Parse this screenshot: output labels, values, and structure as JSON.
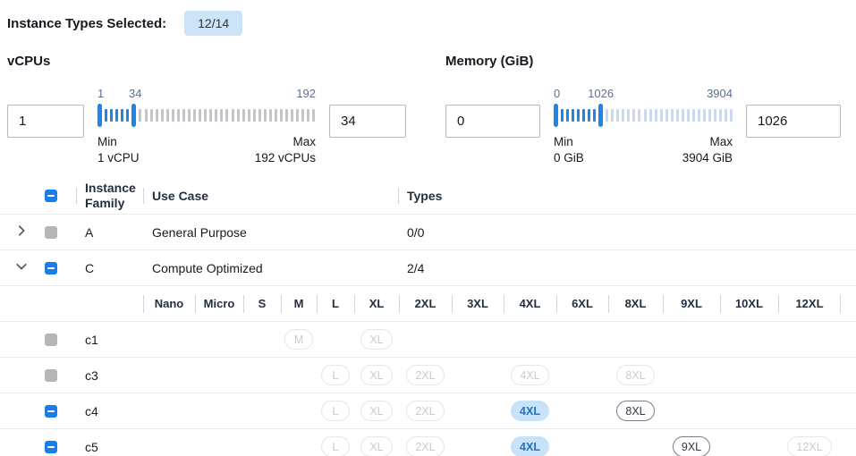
{
  "header": {
    "label": "Instance Types Selected:",
    "badge": "12/14"
  },
  "colors": {
    "accent_blue": "#1a7ee6",
    "slider_active": "#1e87e5",
    "slider_inactive_vcpu": "#c2c5c9",
    "slider_inactive_memory": "#ccd9ec",
    "count_badge_bg": "#cde3f7",
    "selected_pill_bg": "#c7e2f9",
    "selected_pill_text": "#1f73c7",
    "disabled_checkbox": "#b4b6b8"
  },
  "filters": [
    {
      "title": "vCPUs",
      "min_input": "1",
      "max_input": "34",
      "slider": {
        "labels": [
          "1",
          "34",
          "192"
        ],
        "mid_label_pct": 17.3,
        "selected_ticks": 5,
        "trailing_ticks": 33
      },
      "min_label": "Min",
      "min_value": "1 vCPU",
      "max_label": "Max",
      "max_value": "192 vCPUs"
    },
    {
      "title": "Memory (GiB)",
      "min_input": "0",
      "max_input": "1026",
      "slider": {
        "labels": [
          "0",
          "1026",
          "3904"
        ],
        "mid_label_pct": 26.3,
        "selected_ticks": 7,
        "trailing_ticks": 24
      },
      "min_label": "Min",
      "min_value": "0 GiB",
      "max_label": "Max",
      "max_value": "3904 GiB"
    }
  ],
  "table": {
    "columns": {
      "family": "Instance Family",
      "use_case": "Use Case",
      "types": "Types"
    },
    "select_all_checkbox": "indeterminate",
    "size_columns": [
      "Nano",
      "Micro",
      "S",
      "M",
      "L",
      "XL",
      "2XL",
      "3XL",
      "4XL",
      "6XL",
      "8XL",
      "9XL",
      "10XL",
      "12XL"
    ],
    "rows": [
      {
        "type": "family",
        "name": "A",
        "use_case": "General Purpose",
        "types": "0/0",
        "expanded": false,
        "checkbox": "disabled"
      },
      {
        "type": "family",
        "name": "C",
        "use_case": "Compute Optimized",
        "types": "2/4",
        "expanded": true,
        "checkbox": "indeterminate"
      },
      {
        "type": "size_header"
      },
      {
        "type": "instance",
        "name": "c1",
        "checkbox": "disabled",
        "badges": [
          {
            "size": "M",
            "state": "disabled"
          },
          {
            "size": "XL",
            "state": "disabled"
          }
        ]
      },
      {
        "type": "instance",
        "name": "c3",
        "checkbox": "disabled",
        "badges": [
          {
            "size": "L",
            "state": "disabled"
          },
          {
            "size": "XL",
            "state": "disabled"
          },
          {
            "size": "2XL",
            "state": "disabled"
          },
          {
            "size": "4XL",
            "state": "disabled"
          },
          {
            "size": "8XL",
            "state": "disabled"
          }
        ]
      },
      {
        "type": "instance",
        "name": "c4",
        "checkbox": "indeterminate",
        "badges": [
          {
            "size": "L",
            "state": "disabled"
          },
          {
            "size": "XL",
            "state": "disabled"
          },
          {
            "size": "2XL",
            "state": "disabled"
          },
          {
            "size": "4XL",
            "state": "selected"
          },
          {
            "size": "8XL",
            "state": "enabled"
          }
        ]
      },
      {
        "type": "instance",
        "name": "c5",
        "checkbox": "indeterminate",
        "badges": [
          {
            "size": "L",
            "state": "disabled"
          },
          {
            "size": "XL",
            "state": "disabled"
          },
          {
            "size": "2XL",
            "state": "disabled"
          },
          {
            "size": "4XL",
            "state": "selected"
          },
          {
            "size": "9XL",
            "state": "enabled"
          },
          {
            "size": "12XL",
            "state": "disabled"
          }
        ]
      }
    ]
  }
}
